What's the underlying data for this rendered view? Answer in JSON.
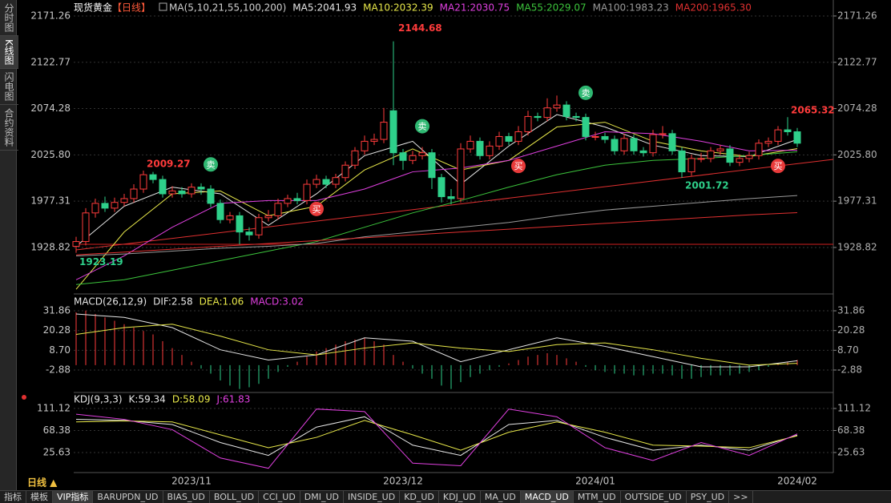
{
  "ui": {
    "sidebar": [
      "分时图",
      "K线图",
      "闪电图",
      "合约资料"
    ],
    "period": "日线 ▲",
    "tabs": [
      "指标",
      "模板",
      "VIP指标",
      "BARUPDN_UD",
      "BIAS_UD",
      "BOLL_UD",
      "CCI_UD",
      "DMI_UD",
      "INSIDE_UD",
      "KD_UD",
      "KDJ_UD",
      "MA_UD",
      "MACD_UD",
      "MTM_UD",
      "OUTSIDE_UD",
      "PSY_UD",
      ">>"
    ]
  },
  "chart_data": [
    {
      "type": "candlestick",
      "title": "现货黄金",
      "period_tag": "【日线】",
      "indicator": "MA(5,10,21,55,100,200)",
      "up_color": "#ff3b3b",
      "down_color": "#2ed08a",
      "categories": [
        null,
        null,
        null,
        null,
        null,
        null,
        null,
        null,
        null,
        null,
        null,
        null,
        "2023/11",
        null,
        null,
        null,
        null,
        null,
        null,
        null,
        null,
        null,
        null,
        null,
        null,
        null,
        null,
        null,
        null,
        null,
        null,
        null,
        null,
        null,
        "2023/12",
        null,
        null,
        null,
        null,
        null,
        null,
        null,
        null,
        null,
        null,
        null,
        null,
        null,
        null,
        null,
        null,
        null,
        null,
        null,
        "2024/01",
        null,
        null,
        null,
        null,
        null,
        null,
        null,
        null,
        null,
        null,
        null,
        null,
        null,
        null,
        null,
        null,
        null,
        null,
        null,
        null,
        "2024/02"
      ],
      "open": [
        1930,
        1935,
        1965,
        1975,
        1970,
        1976,
        1980,
        1990,
        2005,
        2000,
        1985,
        1988,
        1985,
        1992,
        1990,
        1975,
        1958,
        1962,
        1945,
        1942,
        1960,
        1962,
        1975,
        1980,
        1978,
        1995,
        2000,
        1995,
        2002,
        2015,
        2030,
        2040,
        2042,
        2072,
        2028,
        2020,
        2025,
        2028,
        2002,
        1982,
        1980,
        2032,
        2040,
        2025,
        2035,
        2045,
        2040,
        2050,
        2066,
        2065,
        2075,
        2078,
        2066,
        2065,
        2045,
        2045,
        2042,
        2030,
        2043,
        2030,
        2028,
        2047,
        2048,
        2030,
        2008,
        2022,
        2022,
        2030,
        2032,
        2018,
        2022,
        2025,
        2038,
        2040,
        2052,
        2050
      ],
      "high": [
        1940,
        1970,
        1980,
        1982,
        1981,
        1985,
        1995,
        2009.27,
        2008,
        2004,
        1993,
        1992,
        1996,
        1996,
        1994,
        1979,
        1966,
        1966,
        1950,
        1964,
        1968,
        1980,
        1984,
        1986,
        2000,
        2005,
        2004,
        2006,
        2019,
        2034,
        2046,
        2048,
        2075,
        2144.68,
        2032,
        2030,
        2034,
        2032,
        2006,
        1990,
        2038,
        2046,
        2044,
        2040,
        2050,
        2049,
        2056,
        2072,
        2070,
        2085,
        2088,
        2082,
        2070,
        2069,
        2050,
        2049,
        2046,
        2048,
        2047,
        2034,
        2052,
        2056,
        2052,
        2034,
        2026,
        2028,
        2034,
        2036,
        2036,
        2026,
        2029,
        2042,
        2044,
        2056,
        2065.32,
        2054
      ],
      "low": [
        1923.19,
        1931,
        1960,
        1966,
        1966,
        1972,
        1976,
        1986,
        1996,
        1981,
        1981,
        1981,
        1981,
        1984,
        1971,
        1954,
        1954,
        1932,
        1936,
        1938,
        1956,
        1958,
        1971,
        1974,
        1974,
        1991,
        1991,
        1991,
        1998,
        2011,
        2026,
        2036,
        2038,
        2015,
        2010,
        2016,
        2021,
        1990,
        1976,
        1974,
        1976,
        2028,
        2021,
        2021,
        2031,
        2036,
        2036,
        2046,
        2061,
        2061,
        2071,
        2062,
        2061,
        2041,
        2041,
        2038,
        2026,
        2026,
        2026,
        2024,
        2024,
        2043,
        2026,
        2001.72,
        2004,
        2018,
        2018,
        2026,
        2014,
        2014,
        2018,
        2021,
        2034,
        2036,
        2046,
        2034
      ],
      "close": [
        1935,
        1965,
        1975,
        1970,
        1976,
        1980,
        1990,
        2005,
        2000,
        1985,
        1988,
        1985,
        1992,
        1990,
        1975,
        1958,
        1962,
        1945,
        1942,
        1960,
        1962,
        1975,
        1980,
        1978,
        1995,
        2000,
        1995,
        2002,
        2015,
        2030,
        2040,
        2042,
        2060,
        2028,
        2020,
        2025,
        2028,
        2002,
        1982,
        1980,
        2032,
        2040,
        2025,
        2035,
        2045,
        2040,
        2050,
        2066,
        2065,
        2075,
        2078,
        2066,
        2065,
        2045,
        2045,
        2042,
        2030,
        2043,
        2030,
        2028,
        2047,
        2048,
        2030,
        2008,
        2022,
        2022,
        2030,
        2032,
        2018,
        2022,
        2025,
        2038,
        2040,
        2052,
        2050,
        2038
      ],
      "series": [
        {
          "name": "MA5:2041.93",
          "color": "#e6e6e6",
          "x": [
            0,
            5,
            10,
            15,
            20,
            25,
            30,
            35,
            40,
            45,
            50,
            55,
            60,
            65,
            70,
            75
          ],
          "values": [
            1930,
            1972,
            1992,
            1985,
            1952,
            1985,
            2025,
            2040,
            1995,
            2035,
            2068,
            2055,
            2036,
            2025,
            2024,
            2041.93
          ]
        },
        {
          "name": "MA10:2032.39",
          "color": "#e8e84a",
          "x": [
            0,
            5,
            10,
            15,
            20,
            25,
            30,
            35,
            40,
            45,
            50,
            55,
            60,
            65,
            70,
            75
          ],
          "values": [
            1885,
            1945,
            1985,
            1988,
            1962,
            1972,
            2010,
            2032,
            2010,
            2020,
            2055,
            2060,
            2040,
            2030,
            2024,
            2032.39
          ]
        },
        {
          "name": "MA21:2030.75",
          "color": "#e040e0",
          "x": [
            0,
            5,
            10,
            15,
            20,
            25,
            30,
            35,
            40,
            45,
            50,
            55,
            60,
            65,
            70,
            75
          ],
          "values": [
            1895,
            1920,
            1950,
            1975,
            1978,
            1978,
            1990,
            2008,
            2012,
            2020,
            2035,
            2050,
            2048,
            2040,
            2030,
            2030.75
          ]
        },
        {
          "name": "MA55:2029.07",
          "color": "#3cc43c",
          "x": [
            0,
            5,
            10,
            15,
            20,
            25,
            30,
            35,
            40,
            45,
            50,
            55,
            60,
            65,
            70,
            75
          ],
          "values": [
            1890,
            1895,
            1905,
            1915,
            1925,
            1935,
            1950,
            1965,
            1978,
            1992,
            2005,
            2015,
            2020,
            2022,
            2025,
            2029.07
          ]
        },
        {
          "name": "MA100:1983.23",
          "color": "#9a9a9a",
          "x": [
            0,
            5,
            10,
            15,
            20,
            25,
            30,
            35,
            40,
            45,
            50,
            55,
            60,
            65,
            70,
            75
          ],
          "values": [
            1920,
            1922,
            1925,
            1928,
            1930,
            1933,
            1940,
            1945,
            1950,
            1955,
            1962,
            1968,
            1972,
            1976,
            1980,
            1983.23
          ]
        },
        {
          "name": "MA200:1965.30",
          "color": "#e03030",
          "x": [
            0,
            5,
            10,
            15,
            20,
            25,
            30,
            35,
            40,
            45,
            50,
            55,
            60,
            65,
            70,
            75
          ],
          "values": [
            1921,
            1924,
            1927,
            1930,
            1933,
            1936,
            1939,
            1942,
            1945,
            1948,
            1951,
            1954,
            1957,
            1960,
            1963,
            1965.3
          ]
        }
      ],
      "signals": [
        {
          "text": "卖",
          "index": 14,
          "side": "sell"
        },
        {
          "text": "卖",
          "index": 36,
          "side": "sell"
        },
        {
          "text": "卖",
          "index": 53,
          "side": "sell"
        },
        {
          "text": "买",
          "index": 25,
          "side": "buy"
        },
        {
          "text": "买",
          "index": 46,
          "side": "buy"
        },
        {
          "text": "买",
          "index": 73,
          "side": "buy"
        }
      ],
      "ylim": [
        1881.8,
        2183.8
      ],
      "yticks": [
        2171.26,
        2122.77,
        2074.28,
        {
          "value": 2025.8,
          "label": "2025.80"
        },
        1977.31,
        1928.82
      ],
      "grid": true
    },
    {
      "type": "macd",
      "title": "MACD(26,12,9)",
      "bars_name": "MACD:3.02",
      "up_color": "#ff3b3b",
      "down_color": "#2ed08a",
      "values": [
        31,
        32,
        30,
        28,
        26,
        24,
        22,
        20,
        18,
        14,
        10,
        6,
        2,
        -2,
        -5,
        -9,
        -12,
        -14,
        -13,
        -11,
        -8,
        -4,
        -1,
        2,
        5,
        8,
        10,
        12,
        14,
        15,
        16,
        14,
        12,
        6,
        2,
        -2,
        -5,
        -8,
        -12,
        -14,
        -10,
        -7,
        -5,
        -3,
        -1,
        1,
        3,
        5,
        6,
        7,
        6,
        4,
        2,
        -1,
        -3,
        -4,
        -5,
        -5,
        -6,
        -6,
        -5,
        -5,
        -6,
        -8,
        -8,
        -7,
        -6,
        -6,
        -6,
        -5,
        -4,
        -3,
        -1,
        1,
        2,
        3.02
      ],
      "series": [
        {
          "name": "DIF:2.58",
          "color": "#e6e6e6",
          "x": [
            0,
            5,
            10,
            15,
            20,
            25,
            30,
            35,
            40,
            45,
            50,
            55,
            60,
            65,
            70,
            75
          ],
          "values": [
            30,
            28,
            22,
            9,
            3,
            6,
            16,
            14,
            2,
            9,
            16,
            11,
            5,
            -1,
            -1,
            2.58
          ]
        },
        {
          "name": "DEA:1.06",
          "color": "#e8e84a",
          "x": [
            0,
            5,
            10,
            15,
            20,
            25,
            30,
            35,
            40,
            45,
            50,
            55,
            60,
            65,
            70,
            75
          ],
          "values": [
            18,
            22,
            24,
            17,
            9,
            6,
            10,
            13,
            10,
            8,
            12,
            13,
            9,
            4,
            0,
            1.06
          ]
        }
      ],
      "ylim": [
        -13.7,
        39.4
      ],
      "yticks": [
        31.86,
        20.28,
        {
          "value": 8.7,
          "label": "8.70"
        },
        -2.88
      ],
      "grid": true
    },
    {
      "type": "line",
      "title": "KDJ(9,3,3)",
      "series": [
        {
          "name": "K:59.34",
          "color": "#e6e6e6",
          "x": [
            0,
            5,
            10,
            15,
            20,
            25,
            30,
            35,
            40,
            45,
            50,
            55,
            60,
            65,
            70,
            75
          ],
          "values": [
            90,
            88,
            80,
            45,
            20,
            75,
            95,
            40,
            20,
            80,
            88,
            55,
            30,
            40,
            30,
            59.34
          ]
        },
        {
          "name": "D:58.09",
          "color": "#e8e84a",
          "x": [
            0,
            5,
            10,
            15,
            20,
            25,
            30,
            35,
            40,
            45,
            50,
            55,
            60,
            65,
            70,
            75
          ],
          "values": [
            85,
            87,
            85,
            60,
            35,
            55,
            88,
            60,
            30,
            65,
            85,
            65,
            40,
            38,
            35,
            58.09
          ]
        },
        {
          "name": "J:61.83",
          "color": "#e040e0",
          "x": [
            0,
            5,
            10,
            15,
            20,
            25,
            30,
            35,
            40,
            45,
            50,
            55,
            60,
            65,
            70,
            75
          ],
          "values": [
            100,
            90,
            70,
            15,
            -5,
            110,
            105,
            5,
            0,
            110,
            95,
            35,
            10,
            45,
            20,
            61.83
          ]
        }
      ],
      "ylim": [
        -13.3,
        134.4
      ],
      "yticks": [
        111.12,
        68.38,
        25.63
      ],
      "grid": true
    }
  ]
}
